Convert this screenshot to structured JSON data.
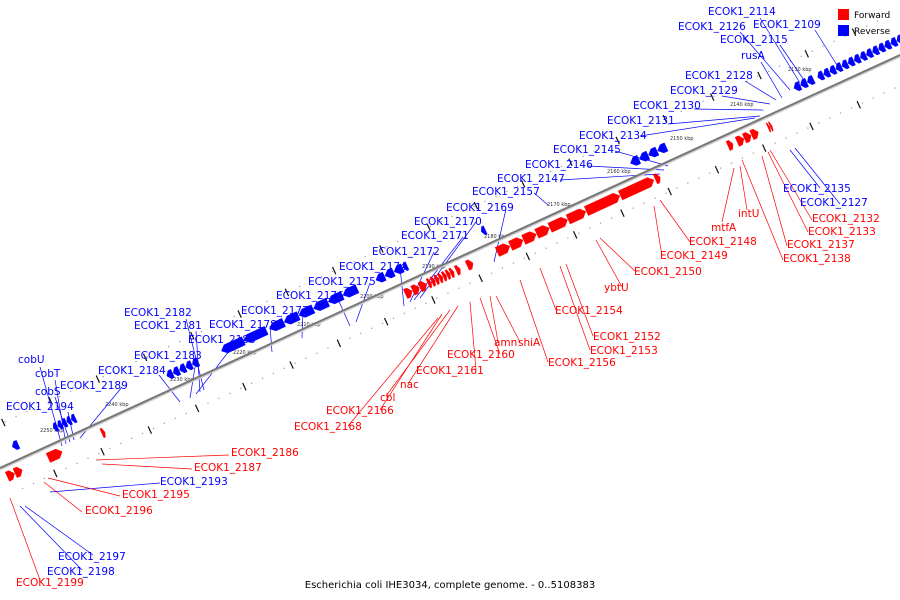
{
  "caption": "Escherichia coli IHE3034, complete genome. - 0..5108383",
  "legend": [
    {
      "label": "Forward",
      "color": "#ff0000"
    },
    {
      "label": "Reverse",
      "color": "#0000ff"
    }
  ],
  "colors": {
    "forward": "#ff0000",
    "reverse": "#0000ff",
    "backbone": "#777777"
  },
  "scale_ticks": [
    "2130 kbp",
    "2140 kbp",
    "2150 kbp",
    "2160 kbp",
    "2170 kbp",
    "2180 kbp",
    "2190 kbp",
    "2200 kbp",
    "2210 kbp",
    "2220 kbp",
    "2230 kbp",
    "2240 kbp",
    "2250 kbp"
  ],
  "reverse_labels": [
    "ECOK1_2114",
    "ECOK1_2126",
    "ECOK1_2109",
    "ECOK1_2115",
    "rusA",
    "ECOK1_2128",
    "ECOK1_2129",
    "ECOK1_2130",
    "ECOK1_2131",
    "ECOK1_2134",
    "ECOK1_2145",
    "ECOK1_2146",
    "ECOK1_2147",
    "ECOK1_2157",
    "ECOK1_2169",
    "ECOK1_2170",
    "ECOK1_2171",
    "ECOK1_2172",
    "ECOK1_2174",
    "ECOK1_2175",
    "ECOK1_2176",
    "ECOK1_2177",
    "ECOK1_2178",
    "ECOK1_2182",
    "ECOK1_2181",
    "ECOK1_2180",
    "ECOK1_2183",
    "ECOK1_2184",
    "ECOK1_2189",
    "cobU",
    "cobT",
    "cobS",
    "ECOK1_2194",
    "ECOK1_2193",
    "ECOK1_2197",
    "ECOK1_2198",
    "ECOK1_2135",
    "ECOK1_2127"
  ],
  "forward_labels": [
    "ECOK1_2132",
    "ECOK1_2133",
    "ECOK1_2137",
    "ECOK1_2138",
    "intU",
    "mtfA",
    "ECOK1_2148",
    "ECOK1_2149",
    "ECOK1_2150",
    "ybtU",
    "ECOK1_2154",
    "ECOK1_2152",
    "ECOK1_2153",
    "ECOK1_2156",
    "amn",
    "shiA",
    "ECOK1_2160",
    "ECOK1_2161",
    "nac",
    "cbl",
    "ECOK1_2166",
    "ECOK1_2168",
    "ECOK1_2186",
    "ECOK1_2187",
    "ECOK1_2195",
    "ECOK1_2196",
    "ECOK1_2199"
  ]
}
